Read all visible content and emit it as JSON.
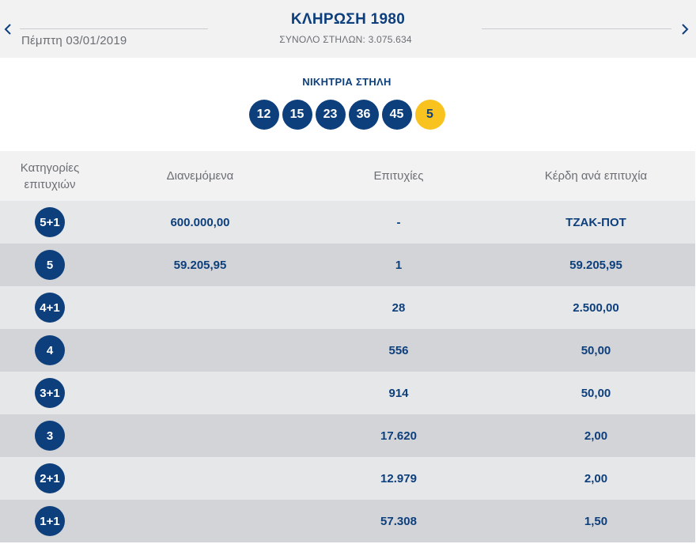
{
  "header": {
    "title": "ΚΛΗΡΩΣΗ 1980",
    "date": "Πέμπτη 03/01/2019",
    "total_columns": "ΣΥΝΟΛΟ ΣΤΗΛΩΝ: 3.075.634"
  },
  "winning": {
    "label": "ΝΙΚΗΤΡΙΑ ΣΤΗΛΗ",
    "numbers": [
      "12",
      "15",
      "23",
      "36",
      "45"
    ],
    "joker": "5",
    "colors": {
      "numbers": "#0d3f7d",
      "joker": "#f9c31f"
    }
  },
  "table": {
    "headers": {
      "category_line1": "Κατηγορίες",
      "category_line2": "επιτυχιών",
      "distributed": "Διανεμόμενα",
      "winners": "Επιτυχίες",
      "prize": "Κέρδη ανά επιτυχία"
    },
    "rows": [
      {
        "category": "5+1",
        "distributed": "600.000,00",
        "winners": "-",
        "prize": "ΤΖΑΚ-ΠΟΤ"
      },
      {
        "category": "5",
        "distributed": "59.205,95",
        "winners": "1",
        "prize": "59.205,95"
      },
      {
        "category": "4+1",
        "distributed": "",
        "winners": "28",
        "prize": "2.500,00"
      },
      {
        "category": "4",
        "distributed": "",
        "winners": "556",
        "prize": "50,00"
      },
      {
        "category": "3+1",
        "distributed": "",
        "winners": "914",
        "prize": "50,00"
      },
      {
        "category": "3",
        "distributed": "",
        "winners": "17.620",
        "prize": "2,00"
      },
      {
        "category": "2+1",
        "distributed": "",
        "winners": "12.979",
        "prize": "2,00"
      },
      {
        "category": "1+1",
        "distributed": "",
        "winners": "57.308",
        "prize": "1,50"
      }
    ]
  },
  "icons": {
    "prev": "chevron-left-icon",
    "next": "chevron-right-icon"
  }
}
